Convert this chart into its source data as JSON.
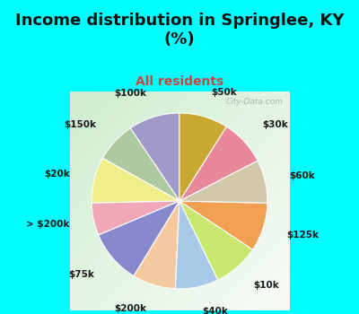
{
  "title": "Income distribution in Springlee, KY\n(%)",
  "subtitle": "All residents",
  "title_color": "#111111",
  "subtitle_color": "#cc4444",
  "background_cyan": "#00ffff",
  "watermark": "City-Data.com",
  "labels": [
    "$100k",
    "$150k",
    "$20k",
    "> $200k",
    "$75k",
    "$200k",
    "$40k",
    "$10k",
    "$125k",
    "$60k",
    "$30k",
    "$50k"
  ],
  "values": [
    9.5,
    7.5,
    8.5,
    6.0,
    10.0,
    8.0,
    8.0,
    8.5,
    9.0,
    8.0,
    8.5,
    9.0
  ],
  "colors": [
    "#a09ac8",
    "#aec8a0",
    "#f0ee88",
    "#f0a8b8",
    "#8888cc",
    "#f5c8a0",
    "#a8c8e8",
    "#c8e870",
    "#f0a050",
    "#d0c8a8",
    "#e88898",
    "#c8a830"
  ],
  "figsize": [
    4.0,
    3.5
  ],
  "dpi": 100,
  "startangle": 90,
  "labeldistance": 1.28,
  "label_fontsize": 7.5,
  "title_fontsize": 13,
  "subtitle_fontsize": 10,
  "wedge_linewidth": 0.8,
  "wedge_edgecolor": "#ffffff"
}
